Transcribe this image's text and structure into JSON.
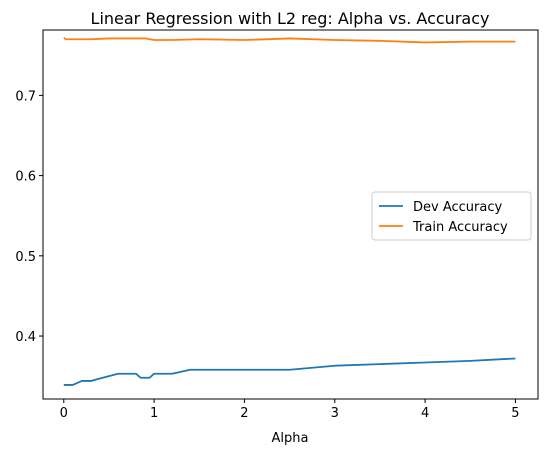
{
  "chart_data": {
    "type": "line",
    "title": "Linear Regression with L2 reg: Alpha vs. Accuracy",
    "xlabel": "Alpha",
    "ylabel": "",
    "xlim": [
      -0.23,
      5.25
    ],
    "ylim": [
      0.3215,
      0.7815
    ],
    "xticks": [
      0,
      1,
      2,
      3,
      4,
      5
    ],
    "xtick_labels": [
      "0",
      "1",
      "2",
      "3",
      "4",
      "5"
    ],
    "yticks": [
      0.4,
      0.5,
      0.6,
      0.7
    ],
    "ytick_labels": [
      "0.4",
      "0.5",
      "0.6",
      "0.7"
    ],
    "grid": false,
    "legend_position": "center-right",
    "series": [
      {
        "name": "Dev Accuracy",
        "color": "#1f77b4",
        "x": [
          0,
          0.1,
          0.2,
          0.3,
          0.4,
          0.5,
          0.6,
          0.7,
          0.8,
          0.85,
          0.9,
          0.95,
          1.0,
          1.2,
          1.4,
          1.6,
          2.0,
          2.5,
          3.0,
          3.5,
          4.0,
          4.5,
          5.0
        ],
        "y": [
          0.339,
          0.339,
          0.344,
          0.344,
          0.347,
          0.35,
          0.353,
          0.353,
          0.353,
          0.348,
          0.348,
          0.348,
          0.353,
          0.353,
          0.358,
          0.358,
          0.358,
          0.358,
          0.363,
          0.365,
          0.367,
          0.369,
          0.372
        ]
      },
      {
        "name": "Train Accuracy",
        "color": "#ff7f0e",
        "x": [
          0,
          0.02,
          0.1,
          0.3,
          0.5,
          0.7,
          0.9,
          1.0,
          1.2,
          1.5,
          2.0,
          2.5,
          3.0,
          3.5,
          4.0,
          4.5,
          5.0
        ],
        "y": [
          0.772,
          0.77,
          0.77,
          0.77,
          0.771,
          0.771,
          0.771,
          0.769,
          0.769,
          0.77,
          0.769,
          0.771,
          0.769,
          0.768,
          0.766,
          0.767,
          0.767
        ]
      }
    ]
  }
}
